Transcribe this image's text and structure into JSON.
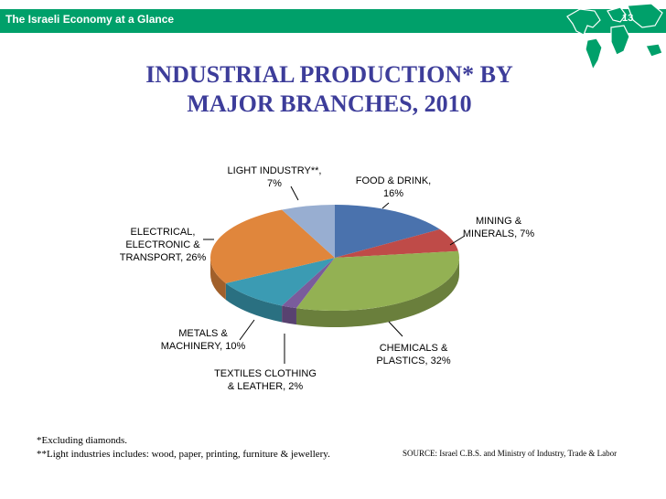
{
  "header": {
    "title": "The Israeli Economy at a Glance",
    "page_number": "13",
    "bar_color": "#00a06a",
    "icon": "world-map-icon"
  },
  "slide": {
    "title_line1": "INDUSTRIAL PRODUCTION* BY",
    "title_line2": "MAJOR BRANCHES, 2010"
  },
  "footnotes": {
    "note1": "*Excluding diamonds.",
    "note2": "**Light industries includes: wood, paper, printing, furniture & jewellery.",
    "source": "SOURCE: Israel C.B.S. and Ministry of Industry, Trade & Labor"
  },
  "chart_data": {
    "type": "pie",
    "title": "",
    "slices": [
      {
        "name": "FOOD & DRINK",
        "value": 16,
        "label_lines": [
          "FOOD & DRINK,",
          "16%"
        ],
        "color": "#4a72ad"
      },
      {
        "name": "MINING & MINERALS",
        "value": 7,
        "label_lines": [
          "MINING &",
          "MINERALS, 7%"
        ],
        "color": "#bf4b48"
      },
      {
        "name": "CHEMICALS & PLASTICS",
        "value": 32,
        "label_lines": [
          "CHEMICALS &",
          "PLASTICS, 32%"
        ],
        "color": "#93b153"
      },
      {
        "name": "TEXTILES CLOTHING & LEATHER",
        "value": 2,
        "label_lines": [
          "TEXTILES CLOTHING",
          "& LEATHER, 2%"
        ],
        "color": "#7a5c9c"
      },
      {
        "name": "METALS & MACHINERY",
        "value": 10,
        "label_lines": [
          "METALS &",
          "MACHINERY, 10%"
        ],
        "color": "#3b9bb3"
      },
      {
        "name": "ELECTRICAL, ELECTRONIC & TRANSPORT",
        "value": 26,
        "label_lines": [
          "ELECTRICAL,",
          "ELECTRONIC &",
          "TRANSPORT, 26%"
        ],
        "color": "#e0863c"
      },
      {
        "name": "LIGHT INDUSTRY**",
        "value": 7,
        "label_lines": [
          "LIGHT INDUSTRY**,",
          "7%"
        ],
        "color": "#98aed1"
      }
    ]
  }
}
